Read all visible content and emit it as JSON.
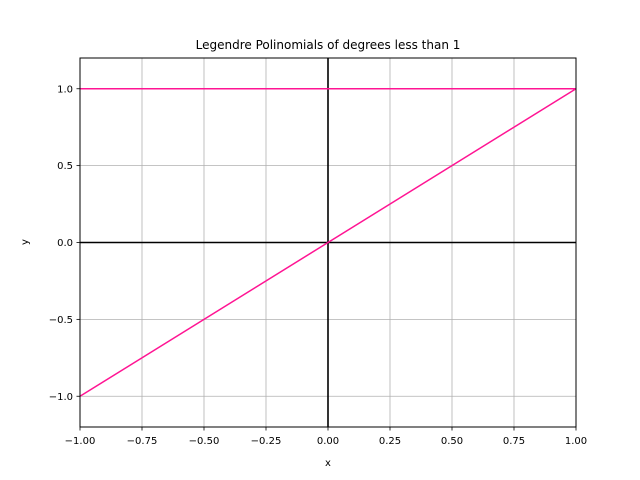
{
  "chart_data": {
    "type": "line",
    "title": "Legendre Polinomials of degrees less than 1",
    "xlabel": "x",
    "ylabel": "y",
    "xlim": [
      -1.0,
      1.0
    ],
    "ylim": [
      -1.2,
      1.2
    ],
    "grid": true,
    "x_ticks": [
      -1.0,
      -0.75,
      -0.5,
      -0.25,
      0.0,
      0.25,
      0.5,
      0.75,
      1.0
    ],
    "x_tick_labels": [
      "−1.00",
      "−0.75",
      "−0.50",
      "−0.25",
      "0.00",
      "0.25",
      "0.50",
      "0.75",
      "1.00"
    ],
    "y_ticks": [
      -1.0,
      -0.5,
      0.0,
      0.5,
      1.0
    ],
    "y_tick_labels": [
      "−1.0",
      "−0.5",
      "0.0",
      "0.5",
      "1.0"
    ],
    "reference_lines": {
      "x": 0.0,
      "y": 0.0,
      "color": "#000000"
    },
    "series": [
      {
        "color": "#ff1493",
        "x": [
          -1.0,
          1.0
        ],
        "y": [
          1.0,
          1.0
        ]
      },
      {
        "color": "#ff1493",
        "x": [
          -1.0,
          1.0
        ],
        "y": [
          -1.0,
          1.0
        ]
      }
    ]
  }
}
